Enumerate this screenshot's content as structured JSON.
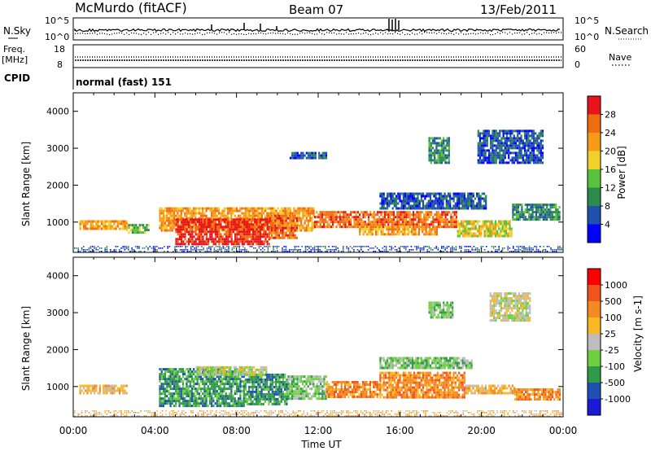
{
  "header": {
    "station": "McMurdo (fitACF)",
    "beam": "Beam 07",
    "date": "13/Feb/2011"
  },
  "strip": {
    "nsky_label": "N.Sky",
    "nsky_ticks": [
      "10^5",
      "10^0"
    ],
    "nsearch_label": "N.Search",
    "nsearch_ticks": [
      "10^5",
      "10^0"
    ],
    "freq_label": "Freq.",
    "freq_unit": "[MHz]",
    "freq_ticks": [
      "18",
      "8"
    ],
    "nave_label": "Nave",
    "nave_ticks": [
      "60",
      "0"
    ],
    "cpid_label": "CPID",
    "cpid_value": "normal (fast) 151"
  },
  "colors": {
    "power": [
      "#0000ff",
      "#1f4fb0",
      "#2c8a4a",
      "#59c23c",
      "#f2d12a",
      "#f79a17",
      "#ef6d10",
      "#e8141a"
    ],
    "velocity": [
      "#ff0000",
      "#f1541c",
      "#f58a22",
      "#f9b824",
      "#bdbdbd",
      "#6cd13d",
      "#2f9a4a",
      "#1f4fb0",
      "#1a1ad6"
    ]
  },
  "chart_data": [
    {
      "type": "heatmap",
      "name": "power",
      "xlabel": "",
      "ylabel": "Slant Range [km]",
      "x_range": [
        "00:00",
        "24:00"
      ],
      "ylim": [
        180,
        4500
      ],
      "y_ticks": [
        1000,
        2000,
        3000,
        4000
      ],
      "colorbar_label": "Power [dB]",
      "colorbar_ticks": [
        "4",
        "8",
        "12",
        "16",
        "20",
        "24",
        "28"
      ],
      "regions": [
        {
          "t0": 0.3,
          "t1": 2.6,
          "r0": 800,
          "r1": 1050,
          "level": 5
        },
        {
          "t0": 2.6,
          "t1": 3.7,
          "r0": 700,
          "r1": 950,
          "level": 3
        },
        {
          "t0": 4.2,
          "t1": 11.8,
          "r0": 800,
          "r1": 1400,
          "level": 5
        },
        {
          "t0": 5.0,
          "t1": 9.6,
          "r0": 430,
          "r1": 1100,
          "level": 7
        },
        {
          "t0": 9.6,
          "t1": 11.0,
          "r0": 600,
          "r1": 1200,
          "level": 6
        },
        {
          "t0": 11.8,
          "t1": 18.8,
          "r0": 850,
          "r1": 1300,
          "level": 6
        },
        {
          "t0": 14.0,
          "t1": 17.8,
          "r0": 650,
          "r1": 900,
          "level": 5
        },
        {
          "t0": 18.8,
          "t1": 21.5,
          "r0": 650,
          "r1": 1050,
          "level": 4
        },
        {
          "t0": 21.5,
          "t1": 23.8,
          "r0": 1100,
          "r1": 1500,
          "level": 2
        },
        {
          "t0": 15.0,
          "t1": 20.2,
          "r0": 1400,
          "r1": 1800,
          "level": 1
        },
        {
          "t0": 19.8,
          "t1": 23.0,
          "r0": 2600,
          "r1": 3500,
          "level": 1
        },
        {
          "t0": 10.6,
          "t1": 12.4,
          "r0": 2750,
          "r1": 2900,
          "level": 1
        },
        {
          "t0": 17.4,
          "t1": 18.4,
          "r0": 2600,
          "r1": 3300,
          "level": 2
        }
      ]
    },
    {
      "type": "heatmap",
      "name": "velocity",
      "xlabel": "Time UT",
      "ylabel": "Slant Range [km]",
      "x_range": [
        "00:00",
        "24:00"
      ],
      "x_ticks": [
        "00:00",
        "04:00",
        "08:00",
        "12:00",
        "16:00",
        "20:00",
        "00:00"
      ],
      "ylim": [
        180,
        4500
      ],
      "y_ticks": [
        1000,
        2000,
        3000,
        4000
      ],
      "colorbar_label": "Velocity [m s-1]",
      "colorbar_ticks": [
        "1000",
        "500",
        "100",
        "25",
        "-25",
        "-100",
        "-500",
        "-1000"
      ],
      "regions": [
        {
          "t0": 0.3,
          "t1": 2.6,
          "r0": 800,
          "r1": 1050,
          "level": 3
        },
        {
          "t0": 4.2,
          "t1": 8.4,
          "r0": 500,
          "r1": 1500,
          "level": 6
        },
        {
          "t0": 8.4,
          "t1": 10.5,
          "r0": 500,
          "r1": 1350,
          "level": 6
        },
        {
          "t0": 6.0,
          "t1": 9.5,
          "r0": 1300,
          "r1": 1550,
          "level": 4
        },
        {
          "t0": 10.5,
          "t1": 12.4,
          "r0": 700,
          "r1": 1300,
          "level": 5
        },
        {
          "t0": 12.4,
          "t1": 15.0,
          "r0": 700,
          "r1": 1150,
          "level": 2
        },
        {
          "t0": 15.0,
          "t1": 19.2,
          "r0": 700,
          "r1": 1400,
          "level": 2
        },
        {
          "t0": 19.2,
          "t1": 21.6,
          "r0": 800,
          "r1": 1050,
          "level": 3
        },
        {
          "t0": 21.6,
          "t1": 23.8,
          "r0": 650,
          "r1": 950,
          "level": 2
        },
        {
          "t0": 20.4,
          "t1": 22.4,
          "r0": 2800,
          "r1": 3550,
          "level": 4
        },
        {
          "t0": 17.4,
          "t1": 18.6,
          "r0": 2900,
          "r1": 3300,
          "level": 5
        },
        {
          "t0": 15.0,
          "t1": 19.5,
          "r0": 1500,
          "r1": 1800,
          "level": 5
        }
      ]
    }
  ]
}
